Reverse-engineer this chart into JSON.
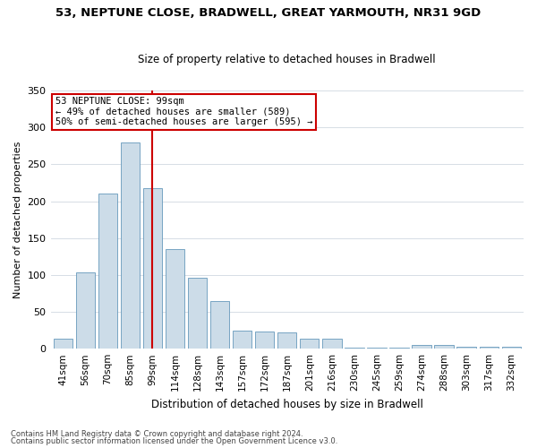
{
  "title1": "53, NEPTUNE CLOSE, BRADWELL, GREAT YARMOUTH, NR31 9GD",
  "title2": "Size of property relative to detached houses in Bradwell",
  "xlabel": "Distribution of detached houses by size in Bradwell",
  "ylabel": "Number of detached properties",
  "categories": [
    "41sqm",
    "56sqm",
    "70sqm",
    "85sqm",
    "99sqm",
    "114sqm",
    "128sqm",
    "143sqm",
    "157sqm",
    "172sqm",
    "187sqm",
    "201sqm",
    "216sqm",
    "230sqm",
    "245sqm",
    "259sqm",
    "274sqm",
    "288sqm",
    "303sqm",
    "317sqm",
    "332sqm"
  ],
  "values": [
    14,
    103,
    210,
    280,
    218,
    135,
    96,
    65,
    25,
    23,
    22,
    13,
    14,
    1,
    1,
    1,
    5,
    5,
    3,
    3,
    3
  ],
  "bar_color": "#ccdce8",
  "bar_edge_color": "#6699bb",
  "vline_x_index": 4,
  "vline_color": "#cc0000",
  "ylim": [
    0,
    350
  ],
  "yticks": [
    0,
    50,
    100,
    150,
    200,
    250,
    300,
    350
  ],
  "annotation_line1": "53 NEPTUNE CLOSE: 99sqm",
  "annotation_line2": "← 49% of detached houses are smaller (589)",
  "annotation_line3": "50% of semi-detached houses are larger (595) →",
  "annotation_box_color": "#ffffff",
  "annotation_box_edge": "#cc0000",
  "footer1": "Contains HM Land Registry data © Crown copyright and database right 2024.",
  "footer2": "Contains public sector information licensed under the Open Government Licence v3.0.",
  "bg_color": "#ffffff",
  "plot_bg_color": "#ffffff",
  "grid_color": "#d0d8e0",
  "title1_fontsize": 9.5,
  "title2_fontsize": 8.5,
  "ylabel_fontsize": 8,
  "xlabel_fontsize": 8.5,
  "tick_fontsize": 7.5,
  "annotation_fontsize": 7.5,
  "footer_fontsize": 6.0
}
